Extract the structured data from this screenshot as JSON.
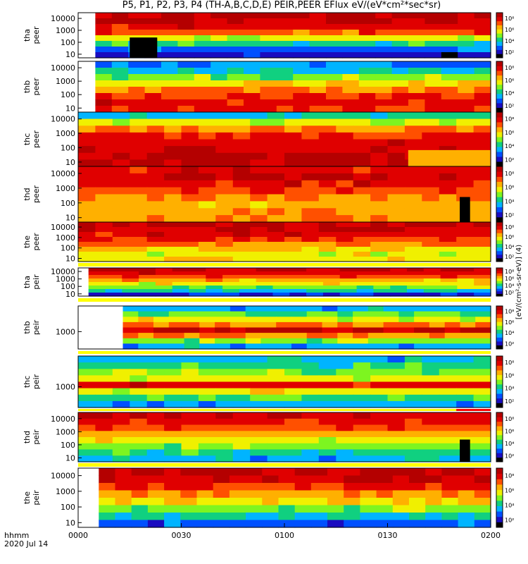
{
  "title": "P5, P1, P2, P3, P4 (TH-A,B,C,D,E) PEIR,PEER EFlux eV/(eV*cm²*sec*sr)",
  "colors": {
    "colormap": [
      "#000000",
      "#1a0cc0",
      "#0050ff",
      "#00b4ff",
      "#10d080",
      "#7df520",
      "#f0f000",
      "#ffb000",
      "#ff5000",
      "#e00000",
      "#b40000"
    ]
  },
  "time_axis": {
    "labels": [
      "0000",
      "0030",
      "0100",
      "0130",
      "0200"
    ],
    "xlim": [
      "00:00",
      "02:00"
    ],
    "left_labels": [
      "hhmm",
      "2020 Jul 14"
    ]
  },
  "colorbar_label": "[eV/(cm²-s-sr-eV)] (4)",
  "chart_data": [
    {
      "type": "heatmap",
      "probe": "tha",
      "ylabel": [
        "tha",
        "peer"
      ],
      "yscale": "log",
      "ylim": [
        5,
        30000
      ],
      "yticks": [
        "10000",
        "1000",
        "100",
        "10"
      ],
      "cbar_ticks": [
        "10⁸",
        "10⁶",
        "10⁴",
        "10²"
      ],
      "data_start": "00:05",
      "profile": [
        0.97,
        0.95,
        0.9,
        0.8,
        0.6,
        0.4,
        0.2,
        0.1
      ],
      "events": [
        {
          "kind": "dark",
          "from": "00:15",
          "to": "00:23"
        }
      ]
    },
    {
      "type": "heatmap",
      "probe": "thb",
      "ylabel": [
        "thb",
        "peer"
      ],
      "yscale": "log",
      "ylim": [
        5,
        30000
      ],
      "yticks": [
        "10000",
        "1000",
        "100",
        "10"
      ],
      "cbar_ticks": [
        "10⁸",
        "10⁶",
        "10⁴",
        "10²"
      ],
      "data_start": "00:05",
      "profile": [
        0.25,
        0.35,
        0.5,
        0.62,
        0.75,
        0.85,
        0.9,
        0.85
      ]
    },
    {
      "type": "heatmap",
      "probe": "thc",
      "ylabel": [
        "thc",
        "peer"
      ],
      "yscale": "log",
      "ylim": [
        5,
        30000
      ],
      "yticks": [
        "10000",
        "1000",
        "100",
        "10"
      ],
      "cbar_ticks": [
        "10⁸",
        "10⁶",
        "10⁴",
        "10²"
      ],
      "data_start": "00:00",
      "profile": [
        0.35,
        0.6,
        0.75,
        0.85,
        0.9,
        0.95,
        0.97,
        0.97
      ],
      "events": [
        {
          "kind": "drop",
          "from": "01:36",
          "to": "02:00"
        }
      ]
    },
    {
      "type": "heatmap",
      "probe": "thd",
      "ylabel": [
        "thd",
        "peer"
      ],
      "yscale": "log",
      "ylim": [
        5,
        30000
      ],
      "yticks": [
        "10000",
        "1000",
        "100",
        "10"
      ],
      "cbar_ticks": [
        "10⁸",
        "10⁶",
        "10⁴",
        "10²"
      ],
      "data_start": "00:00",
      "profile": [
        0.9,
        0.95,
        0.9,
        0.82,
        0.75,
        0.7,
        0.7,
        0.72
      ],
      "events": [
        {
          "kind": "dark",
          "from": "01:51",
          "to": "01:54"
        }
      ]
    },
    {
      "type": "heatmap",
      "probe": "the",
      "ylabel": [
        "the",
        "peer"
      ],
      "yscale": "log",
      "ylim": [
        5,
        30000
      ],
      "yticks": [
        "10000",
        "1000",
        "100",
        "10"
      ],
      "cbar_ticks": [
        "10⁸",
        "10⁶",
        "10⁴",
        "10²"
      ],
      "data_start": "00:00",
      "profile": [
        0.97,
        0.95,
        0.9,
        0.85,
        0.75,
        0.65,
        0.6,
        0.62
      ]
    },
    {
      "type": "heatmap",
      "probe": "tha",
      "ylabel": [
        "tha",
        "peir"
      ],
      "yscale": "log",
      "ylim": [
        5,
        30000
      ],
      "yticks": [
        "10000",
        "1000",
        "100",
        "10"
      ],
      "cbar_ticks": [
        "10⁸",
        "10⁶",
        "10⁴",
        "10²"
      ],
      "data_start": "00:03",
      "profile": [
        0.95,
        0.9,
        0.82,
        0.7,
        0.6,
        0.5,
        0.35,
        0.15
      ]
    },
    {
      "type": "heatmap",
      "probe": "thb",
      "ylabel": [
        "thb",
        "peir"
      ],
      "yscale": "log",
      "ylim": [
        100,
        30000
      ],
      "yticks": [
        "1000"
      ],
      "cbar_ticks": [
        "10⁸",
        "10⁶",
        "10⁴",
        "10²"
      ],
      "data_start": "00:13",
      "profile": [
        0.3,
        0.45,
        0.6,
        0.75,
        0.95,
        0.75,
        0.5,
        0.3
      ]
    },
    {
      "type": "heatmap",
      "probe": "thc",
      "ylabel": [
        "thc",
        "peir"
      ],
      "yscale": "log",
      "ylim": [
        100,
        30000
      ],
      "yticks": [
        "1000"
      ],
      "cbar_ticks": [
        "10⁸",
        "10⁶",
        "10⁴",
        "10²"
      ],
      "data_start": "00:00",
      "profile": [
        0.3,
        0.4,
        0.5,
        0.6,
        0.9,
        0.6,
        0.45,
        0.3
      ]
    },
    {
      "type": "heatmap",
      "probe": "thd",
      "ylabel": [
        "thd",
        "peir"
      ],
      "yscale": "log",
      "ylim": [
        5,
        30000
      ],
      "yticks": [
        "10000",
        "1000",
        "100",
        "10"
      ],
      "cbar_ticks": [
        "10⁸",
        "10⁶",
        "10⁴",
        "10²"
      ],
      "data_start": "00:00",
      "profile": [
        0.92,
        0.88,
        0.8,
        0.7,
        0.6,
        0.5,
        0.4,
        0.3
      ],
      "events": [
        {
          "kind": "dark",
          "from": "01:51",
          "to": "01:54"
        }
      ]
    },
    {
      "type": "heatmap",
      "probe": "the",
      "ylabel": [
        "the",
        "peir"
      ],
      "yscale": "log",
      "ylim": [
        5,
        30000
      ],
      "yticks": [
        "10000",
        "1000",
        "100",
        "10"
      ],
      "cbar_ticks": [
        "10⁸",
        "10⁶",
        "10⁴",
        "10²"
      ],
      "data_start": "00:06",
      "profile": [
        0.97,
        0.93,
        0.85,
        0.75,
        0.62,
        0.5,
        0.35,
        0.2
      ]
    }
  ]
}
